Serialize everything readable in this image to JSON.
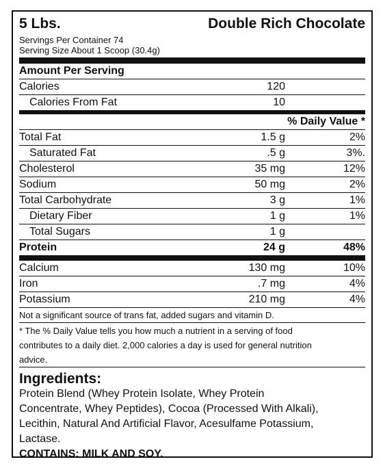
{
  "header": {
    "size": "5 Lbs.",
    "flavor": "Double Rich Chocolate",
    "servings_per_container": "Servings Per Container 74",
    "serving_size": "Serving Size About 1 Scoop (30.4g)"
  },
  "amount_per_serving": "Amount Per Serving",
  "calories": {
    "label": "Calories",
    "value": "120"
  },
  "calories_from_fat": {
    "label": "Calories From Fat",
    "value": "10"
  },
  "daily_value_header": "% Daily Value *",
  "nutrients": [
    {
      "label": "Total Fat",
      "amount": "1.5 g",
      "dv": "2%"
    },
    {
      "label": "Saturated Fat",
      "amount": ".5 g",
      "dv": "3%."
    },
    {
      "label": "Cholesterol",
      "amount": "35 mg",
      "dv": "12%"
    },
    {
      "label": "Sodium",
      "amount": "50 mg",
      "dv": "2%"
    },
    {
      "label": "Total Carbohydrate",
      "amount": "3 g",
      "dv": "1%"
    },
    {
      "label": "Dietary Fiber",
      "amount": "1 g",
      "dv": "1%"
    },
    {
      "label": "Total Sugars",
      "amount": "1 g",
      "dv": ""
    },
    {
      "label": "Protein",
      "amount": "24 g",
      "dv": "48%"
    }
  ],
  "minerals": [
    {
      "label": "Calcium",
      "amount": "130 mg",
      "dv": "10%"
    },
    {
      "label": "Iron",
      "amount": ".7 mg",
      "dv": "4%"
    },
    {
      "label": "Potassium",
      "amount": "210 mg",
      "dv": "4%"
    }
  ],
  "not_significant": "Not a significant source of trans fat, added sugars and vitamin D.",
  "footnote_lines": [
    "* The % Daily Value tells you how much a nutrient in a serving of food",
    "contributes to a daily diet. 2,000 calories a day is used for general nutrition",
    "advice."
  ],
  "ingredients": {
    "title": "Ingredients:",
    "lines": [
      "Protein Blend (Whey Protein Isolate, Whey Protein",
      "Concentrate, Whey Peptides), Cocoa (Processed With Alkali),",
      "Lecithin, Natural And Artificial Flavor, Acesulfame Potassium,",
      "Lactase."
    ],
    "contains": "CONTAINS: MILK AND SOY."
  }
}
